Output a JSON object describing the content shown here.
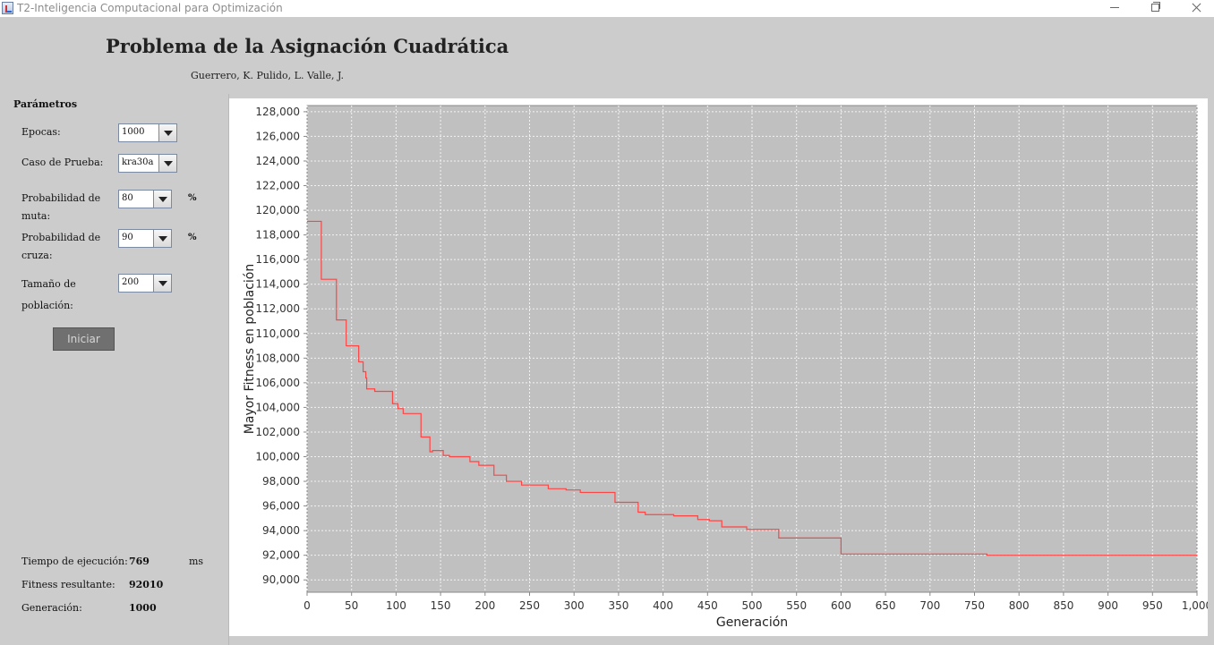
{
  "window": {
    "title": "T2-Inteligencia Computacional para Optimización"
  },
  "header": {
    "title": "Problema de la Asignación Cuadrática",
    "authors": "Guerrero, K. Pulido, L. Valle, J."
  },
  "params": {
    "title": "Parámetros",
    "epocas_label": "Epocas:",
    "epocas_value": "1000",
    "caso_label": "Caso de Prueba:",
    "caso_value": "kra30a",
    "muta_label_1": "Probabilidad de",
    "muta_label_2": "muta:",
    "muta_value": "80",
    "cruza_label_1": "Probabilidad de",
    "cruza_label_2": "cruza:",
    "cruza_value": "90",
    "pop_label_1": "Tamaño de",
    "pop_label_2": "población:",
    "pop_value": "200",
    "percent": "%",
    "start_label": "Iniciar"
  },
  "results": {
    "time_label": "Tiempo de ejecución:",
    "time_value": "769",
    "time_unit": "ms",
    "fitness_label": "Fitness resultante:",
    "fitness_value": "92010",
    "gen_label": "Generación:",
    "gen_value": "1000"
  },
  "colors": {
    "series": "#ff4444",
    "plot_bg": "#c0c0c0",
    "window_bg": "#cccccc"
  },
  "chart_data": {
    "type": "line",
    "xlabel": "Generación",
    "ylabel": "Mayor Fitness en población",
    "xlim": [
      0,
      1000
    ],
    "ylim": [
      89000,
      128500
    ],
    "x_ticks": [
      0,
      50,
      100,
      150,
      200,
      250,
      300,
      350,
      400,
      450,
      500,
      550,
      600,
      650,
      700,
      750,
      800,
      850,
      900,
      950,
      1000
    ],
    "x_tick_labels": [
      "0",
      "50",
      "100",
      "150",
      "200",
      "250",
      "300",
      "350",
      "400",
      "450",
      "500",
      "550",
      "600",
      "650",
      "700",
      "750",
      "800",
      "850",
      "900",
      "950",
      "1,000"
    ],
    "y_ticks": [
      90000,
      92000,
      94000,
      96000,
      98000,
      100000,
      102000,
      104000,
      106000,
      108000,
      110000,
      112000,
      114000,
      116000,
      118000,
      120000,
      122000,
      124000,
      126000,
      128000
    ],
    "y_tick_labels": [
      "90,000",
      "92,000",
      "94,000",
      "96,000",
      "98,000",
      "100,000",
      "102,000",
      "104,000",
      "106,000",
      "108,000",
      "110,000",
      "112,000",
      "114,000",
      "116,000",
      "118,000",
      "120,000",
      "122,000",
      "124,000",
      "126,000",
      "128,000"
    ],
    "grid": true,
    "legend": "none",
    "step": true,
    "series": [
      {
        "x": [
          0,
          16,
          33,
          44,
          58,
          63,
          66,
          67,
          76,
          96,
          102,
          108,
          128,
          138,
          141,
          153,
          160,
          183,
          193,
          210,
          224,
          241,
          271,
          291,
          307,
          346,
          372,
          380,
          412,
          439,
          452,
          466,
          494,
          530,
          567,
          600,
          666,
          764,
          1000
        ],
        "values": [
          119100,
          114400,
          111100,
          109000,
          107700,
          106900,
          106400,
          105500,
          105300,
          104300,
          103900,
          103500,
          101600,
          100400,
          100500,
          100100,
          100000,
          99600,
          99300,
          98500,
          98000,
          97700,
          97400,
          97300,
          97100,
          96300,
          95500,
          95300,
          95200,
          94900,
          94800,
          94300,
          94100,
          93400,
          93400,
          92100,
          92100,
          92000,
          92000
        ]
      }
    ]
  }
}
